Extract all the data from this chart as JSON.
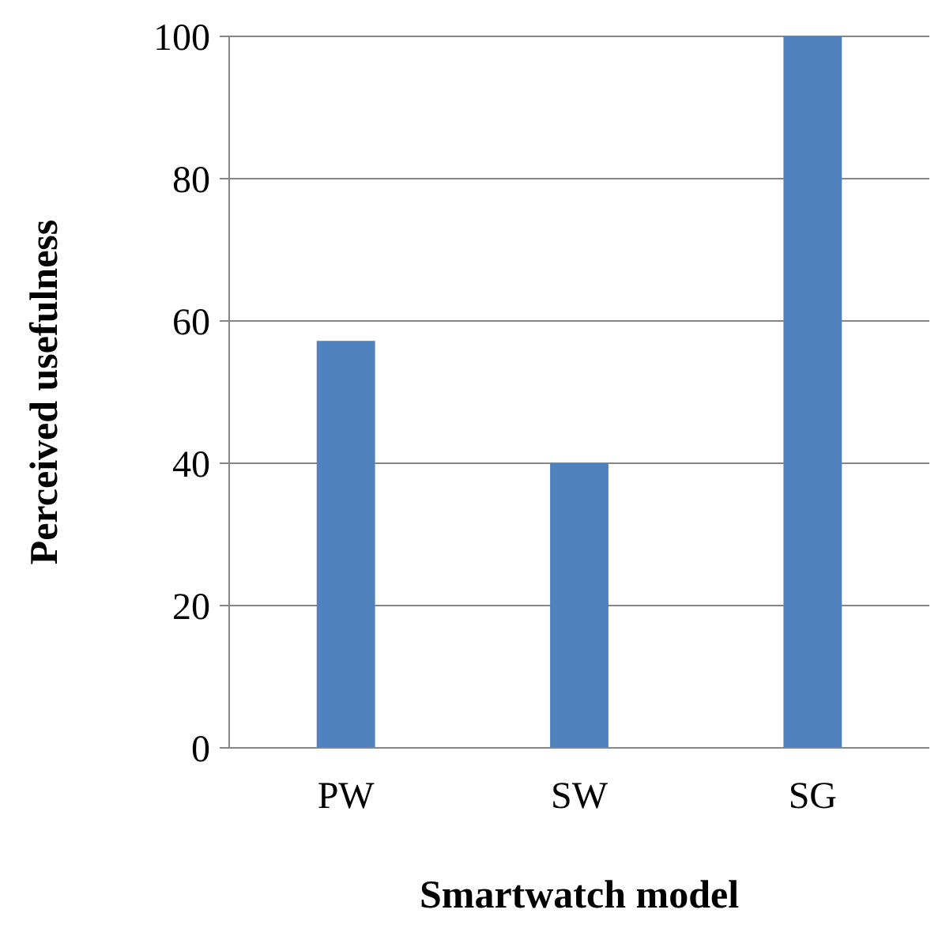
{
  "chart_data": {
    "type": "bar",
    "xlabel": "Smartwatch model",
    "ylabel": "Perceived usefulness",
    "categories": [
      "PW",
      "SW",
      "SG"
    ],
    "values": [
      57.2,
      40,
      100
    ],
    "color": "#4f81bd",
    "ylim": [
      0,
      100
    ],
    "yticks": [
      0,
      20,
      40,
      60,
      80,
      100
    ],
    "grid": "y"
  }
}
